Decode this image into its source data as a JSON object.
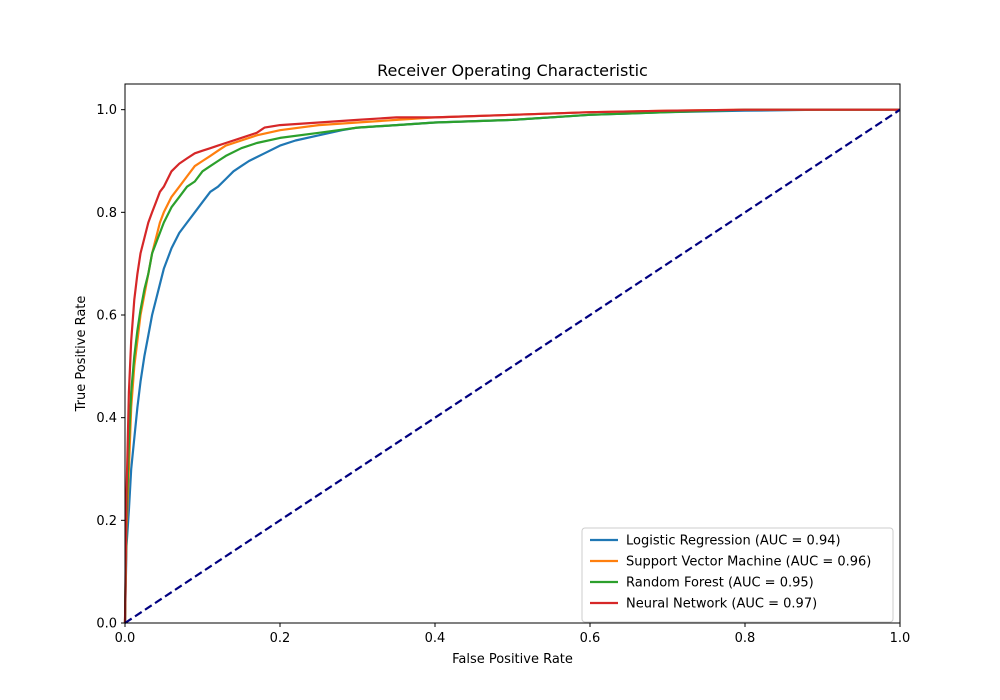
{
  "chart_data": {
    "type": "line",
    "title": "Receiver Operating Characteristic",
    "xlabel": "False Positive Rate",
    "ylabel": "True Positive Rate",
    "xlim": [
      0.0,
      1.0
    ],
    "ylim": [
      0.0,
      1.05
    ],
    "x_ticks": [
      "0.0",
      "0.2",
      "0.4",
      "0.6",
      "0.8",
      "1.0"
    ],
    "y_ticks": [
      "0.0",
      "0.2",
      "0.4",
      "0.6",
      "0.8",
      "1.0"
    ],
    "grid": false,
    "legend_position": "lower-right",
    "series": [
      {
        "name": "Logistic Regression (AUC = 0.94)",
        "color": "#1f77b4",
        "line_style": "solid",
        "x": [
          0,
          0.002,
          0.005,
          0.008,
          0.012,
          0.016,
          0.02,
          0.025,
          0.03,
          0.035,
          0.04,
          0.045,
          0.05,
          0.06,
          0.07,
          0.08,
          0.09,
          0.1,
          0.11,
          0.12,
          0.13,
          0.14,
          0.15,
          0.16,
          0.18,
          0.2,
          0.22,
          0.25,
          0.28,
          0.3,
          0.35,
          0.4,
          0.5,
          0.6,
          0.7,
          0.8,
          0.9,
          1.0
        ],
        "y": [
          0,
          0.15,
          0.22,
          0.3,
          0.36,
          0.42,
          0.47,
          0.52,
          0.56,
          0.6,
          0.63,
          0.66,
          0.69,
          0.73,
          0.76,
          0.78,
          0.8,
          0.82,
          0.84,
          0.85,
          0.865,
          0.88,
          0.89,
          0.9,
          0.915,
          0.93,
          0.94,
          0.95,
          0.96,
          0.965,
          0.97,
          0.975,
          0.98,
          0.99,
          0.995,
          0.998,
          1.0,
          1.0
        ]
      },
      {
        "name": "Support Vector Machine (AUC = 0.96)",
        "color": "#ff7f0e",
        "line_style": "solid",
        "x": [
          0,
          0.002,
          0.005,
          0.008,
          0.012,
          0.016,
          0.02,
          0.025,
          0.03,
          0.035,
          0.04,
          0.045,
          0.05,
          0.06,
          0.07,
          0.08,
          0.09,
          0.1,
          0.11,
          0.12,
          0.13,
          0.15,
          0.17,
          0.2,
          0.25,
          0.3,
          0.35,
          0.4,
          0.5,
          0.6,
          0.7,
          0.8,
          0.9,
          1.0
        ],
        "y": [
          0,
          0.18,
          0.3,
          0.42,
          0.5,
          0.55,
          0.6,
          0.64,
          0.68,
          0.72,
          0.75,
          0.78,
          0.8,
          0.83,
          0.85,
          0.87,
          0.89,
          0.9,
          0.91,
          0.92,
          0.93,
          0.94,
          0.95,
          0.96,
          0.97,
          0.975,
          0.98,
          0.985,
          0.99,
          0.995,
          0.998,
          1.0,
          1.0,
          1.0
        ]
      },
      {
        "name": "Random Forest (AUC = 0.95)",
        "color": "#2ca02c",
        "line_style": "solid",
        "x": [
          0,
          0.002,
          0.005,
          0.008,
          0.012,
          0.016,
          0.02,
          0.025,
          0.03,
          0.035,
          0.04,
          0.045,
          0.05,
          0.06,
          0.07,
          0.08,
          0.09,
          0.1,
          0.11,
          0.12,
          0.13,
          0.15,
          0.17,
          0.2,
          0.25,
          0.3,
          0.35,
          0.4,
          0.5,
          0.6,
          0.7,
          0.8,
          0.9,
          1.0
        ],
        "y": [
          0,
          0.2,
          0.35,
          0.45,
          0.52,
          0.57,
          0.61,
          0.65,
          0.68,
          0.72,
          0.74,
          0.76,
          0.78,
          0.81,
          0.83,
          0.85,
          0.86,
          0.88,
          0.89,
          0.9,
          0.91,
          0.925,
          0.935,
          0.945,
          0.955,
          0.965,
          0.97,
          0.975,
          0.98,
          0.99,
          0.995,
          1.0,
          1.0,
          1.0
        ]
      },
      {
        "name": "Neural Network (AUC = 0.97)",
        "color": "#d62728",
        "line_style": "solid",
        "x": [
          0,
          0.002,
          0.005,
          0.008,
          0.012,
          0.016,
          0.02,
          0.025,
          0.03,
          0.035,
          0.04,
          0.045,
          0.05,
          0.06,
          0.07,
          0.08,
          0.09,
          0.1,
          0.11,
          0.12,
          0.13,
          0.15,
          0.17,
          0.18,
          0.2,
          0.25,
          0.3,
          0.35,
          0.4,
          0.5,
          0.6,
          0.7,
          0.8,
          0.9,
          1.0
        ],
        "y": [
          0,
          0.25,
          0.45,
          0.55,
          0.63,
          0.68,
          0.72,
          0.75,
          0.78,
          0.8,
          0.82,
          0.84,
          0.85,
          0.88,
          0.895,
          0.905,
          0.915,
          0.92,
          0.925,
          0.93,
          0.935,
          0.945,
          0.955,
          0.965,
          0.97,
          0.975,
          0.98,
          0.985,
          0.985,
          0.99,
          0.995,
          0.998,
          1.0,
          1.0,
          1.0
        ]
      },
      {
        "name": "",
        "color": "#000080",
        "line_style": "dashed",
        "x": [
          0,
          1
        ],
        "y": [
          0,
          1
        ]
      }
    ]
  }
}
